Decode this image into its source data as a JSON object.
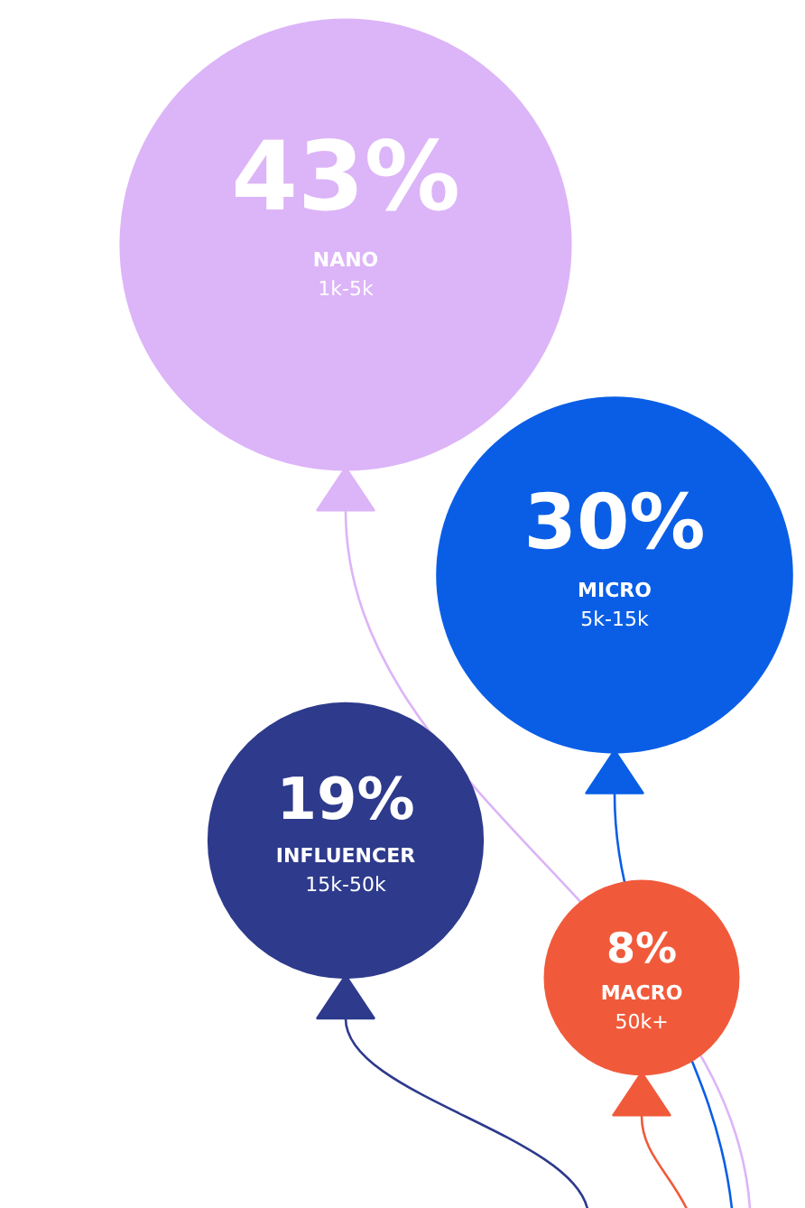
{
  "chart_data": {
    "type": "other",
    "categories": [
      "NANO",
      "MICRO",
      "INFLUENCER",
      "MACRO"
    ],
    "values": [
      43,
      30,
      19,
      8
    ],
    "value_labels": [
      "43%",
      "30%",
      "19%",
      "8%"
    ],
    "colors": [
      "#dcb4f8",
      "#0a5ee6",
      "#2e3a8c",
      "#f05a3a"
    ],
    "annotations": [
      "1k-5k",
      "5k-15k",
      "15k-50k",
      "50k+"
    ]
  }
}
